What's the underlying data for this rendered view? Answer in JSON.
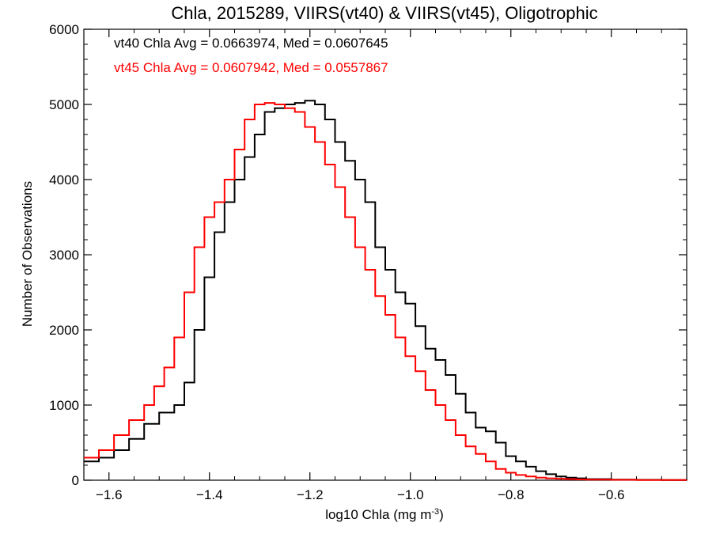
{
  "chart_data": {
    "type": "line",
    "title": "Chla, 2015289, VIIRS(vt40) & VIIRS(vt45), Oligotrophic",
    "xlabel": "log10 Chla (mg m",
    "xlabel_sup": "-3",
    "xlabel_suffix": ")",
    "ylabel": "Number of Observations",
    "xlim": [
      -1.65,
      -0.45
    ],
    "ylim": [
      0,
      6000
    ],
    "x_ticks": [
      -1.6,
      -1.4,
      -1.2,
      -1.0,
      -0.8,
      -0.6
    ],
    "x_tick_labels": [
      "−1.6",
      "−1.4",
      "−1.2",
      "−1.0",
      "−0.8",
      "−0.6"
    ],
    "y_ticks": [
      0,
      1000,
      2000,
      3000,
      4000,
      5000,
      6000
    ],
    "y_tick_labels": [
      "0",
      "1000",
      "2000",
      "3000",
      "4000",
      "5000",
      "6000"
    ],
    "grid": false,
    "annotations": [
      {
        "text": "vt40 Chla Avg = 0.0663974, Med = 0.0607645",
        "color": "#000000"
      },
      {
        "text": "vt45 Chla Avg = 0.0607942, Med = 0.0557867",
        "color": "#ff0000"
      }
    ],
    "series": [
      {
        "color": "#000000",
        "x": [
          -1.65,
          -1.62,
          -1.59,
          -1.56,
          -1.53,
          -1.5,
          -1.47,
          -1.45,
          -1.43,
          -1.41,
          -1.39,
          -1.37,
          -1.35,
          -1.33,
          -1.31,
          -1.29,
          -1.27,
          -1.25,
          -1.23,
          -1.21,
          -1.19,
          -1.17,
          -1.15,
          -1.13,
          -1.11,
          -1.09,
          -1.07,
          -1.05,
          -1.03,
          -1.01,
          -0.99,
          -0.97,
          -0.95,
          -0.93,
          -0.91,
          -0.89,
          -0.87,
          -0.85,
          -0.83,
          -0.81,
          -0.79,
          -0.77,
          -0.75,
          -0.73,
          -0.71,
          -0.69,
          -0.67,
          -0.65,
          -0.6,
          -0.55,
          -0.5,
          -0.45
        ],
        "y": [
          250,
          300,
          400,
          550,
          750,
          900,
          1000,
          1300,
          2000,
          2700,
          3300,
          3700,
          4000,
          4300,
          4600,
          4900,
          4950,
          5000,
          5020,
          5050,
          5000,
          4800,
          4500,
          4250,
          4000,
          3700,
          3100,
          2800,
          2500,
          2350,
          2050,
          1750,
          1600,
          1400,
          1150,
          900,
          700,
          650,
          500,
          320,
          250,
          180,
          120,
          80,
          50,
          35,
          25,
          15,
          8,
          5,
          3,
          2
        ]
      },
      {
        "color": "#ff0000",
        "x": [
          -1.65,
          -1.62,
          -1.59,
          -1.56,
          -1.53,
          -1.51,
          -1.49,
          -1.47,
          -1.45,
          -1.43,
          -1.41,
          -1.39,
          -1.37,
          -1.35,
          -1.33,
          -1.31,
          -1.29,
          -1.27,
          -1.25,
          -1.23,
          -1.21,
          -1.19,
          -1.17,
          -1.15,
          -1.13,
          -1.11,
          -1.09,
          -1.07,
          -1.05,
          -1.03,
          -1.01,
          -0.99,
          -0.97,
          -0.95,
          -0.93,
          -0.91,
          -0.89,
          -0.87,
          -0.85,
          -0.83,
          -0.81,
          -0.79,
          -0.77,
          -0.75,
          -0.73,
          -0.71,
          -0.69,
          -0.67,
          -0.65,
          -0.6,
          -0.55,
          -0.5,
          -0.45
        ],
        "y": [
          300,
          400,
          600,
          800,
          1000,
          1250,
          1500,
          1900,
          2500,
          3100,
          3500,
          3700,
          4000,
          4400,
          4800,
          5000,
          5020,
          5000,
          4950,
          4900,
          4700,
          4500,
          4200,
          3900,
          3500,
          3100,
          2800,
          2450,
          2200,
          1900,
          1650,
          1450,
          1200,
          1000,
          800,
          600,
          450,
          350,
          250,
          150,
          100,
          70,
          50,
          35,
          25,
          20,
          15,
          10,
          8,
          5,
          3,
          2,
          2
        ]
      }
    ]
  }
}
